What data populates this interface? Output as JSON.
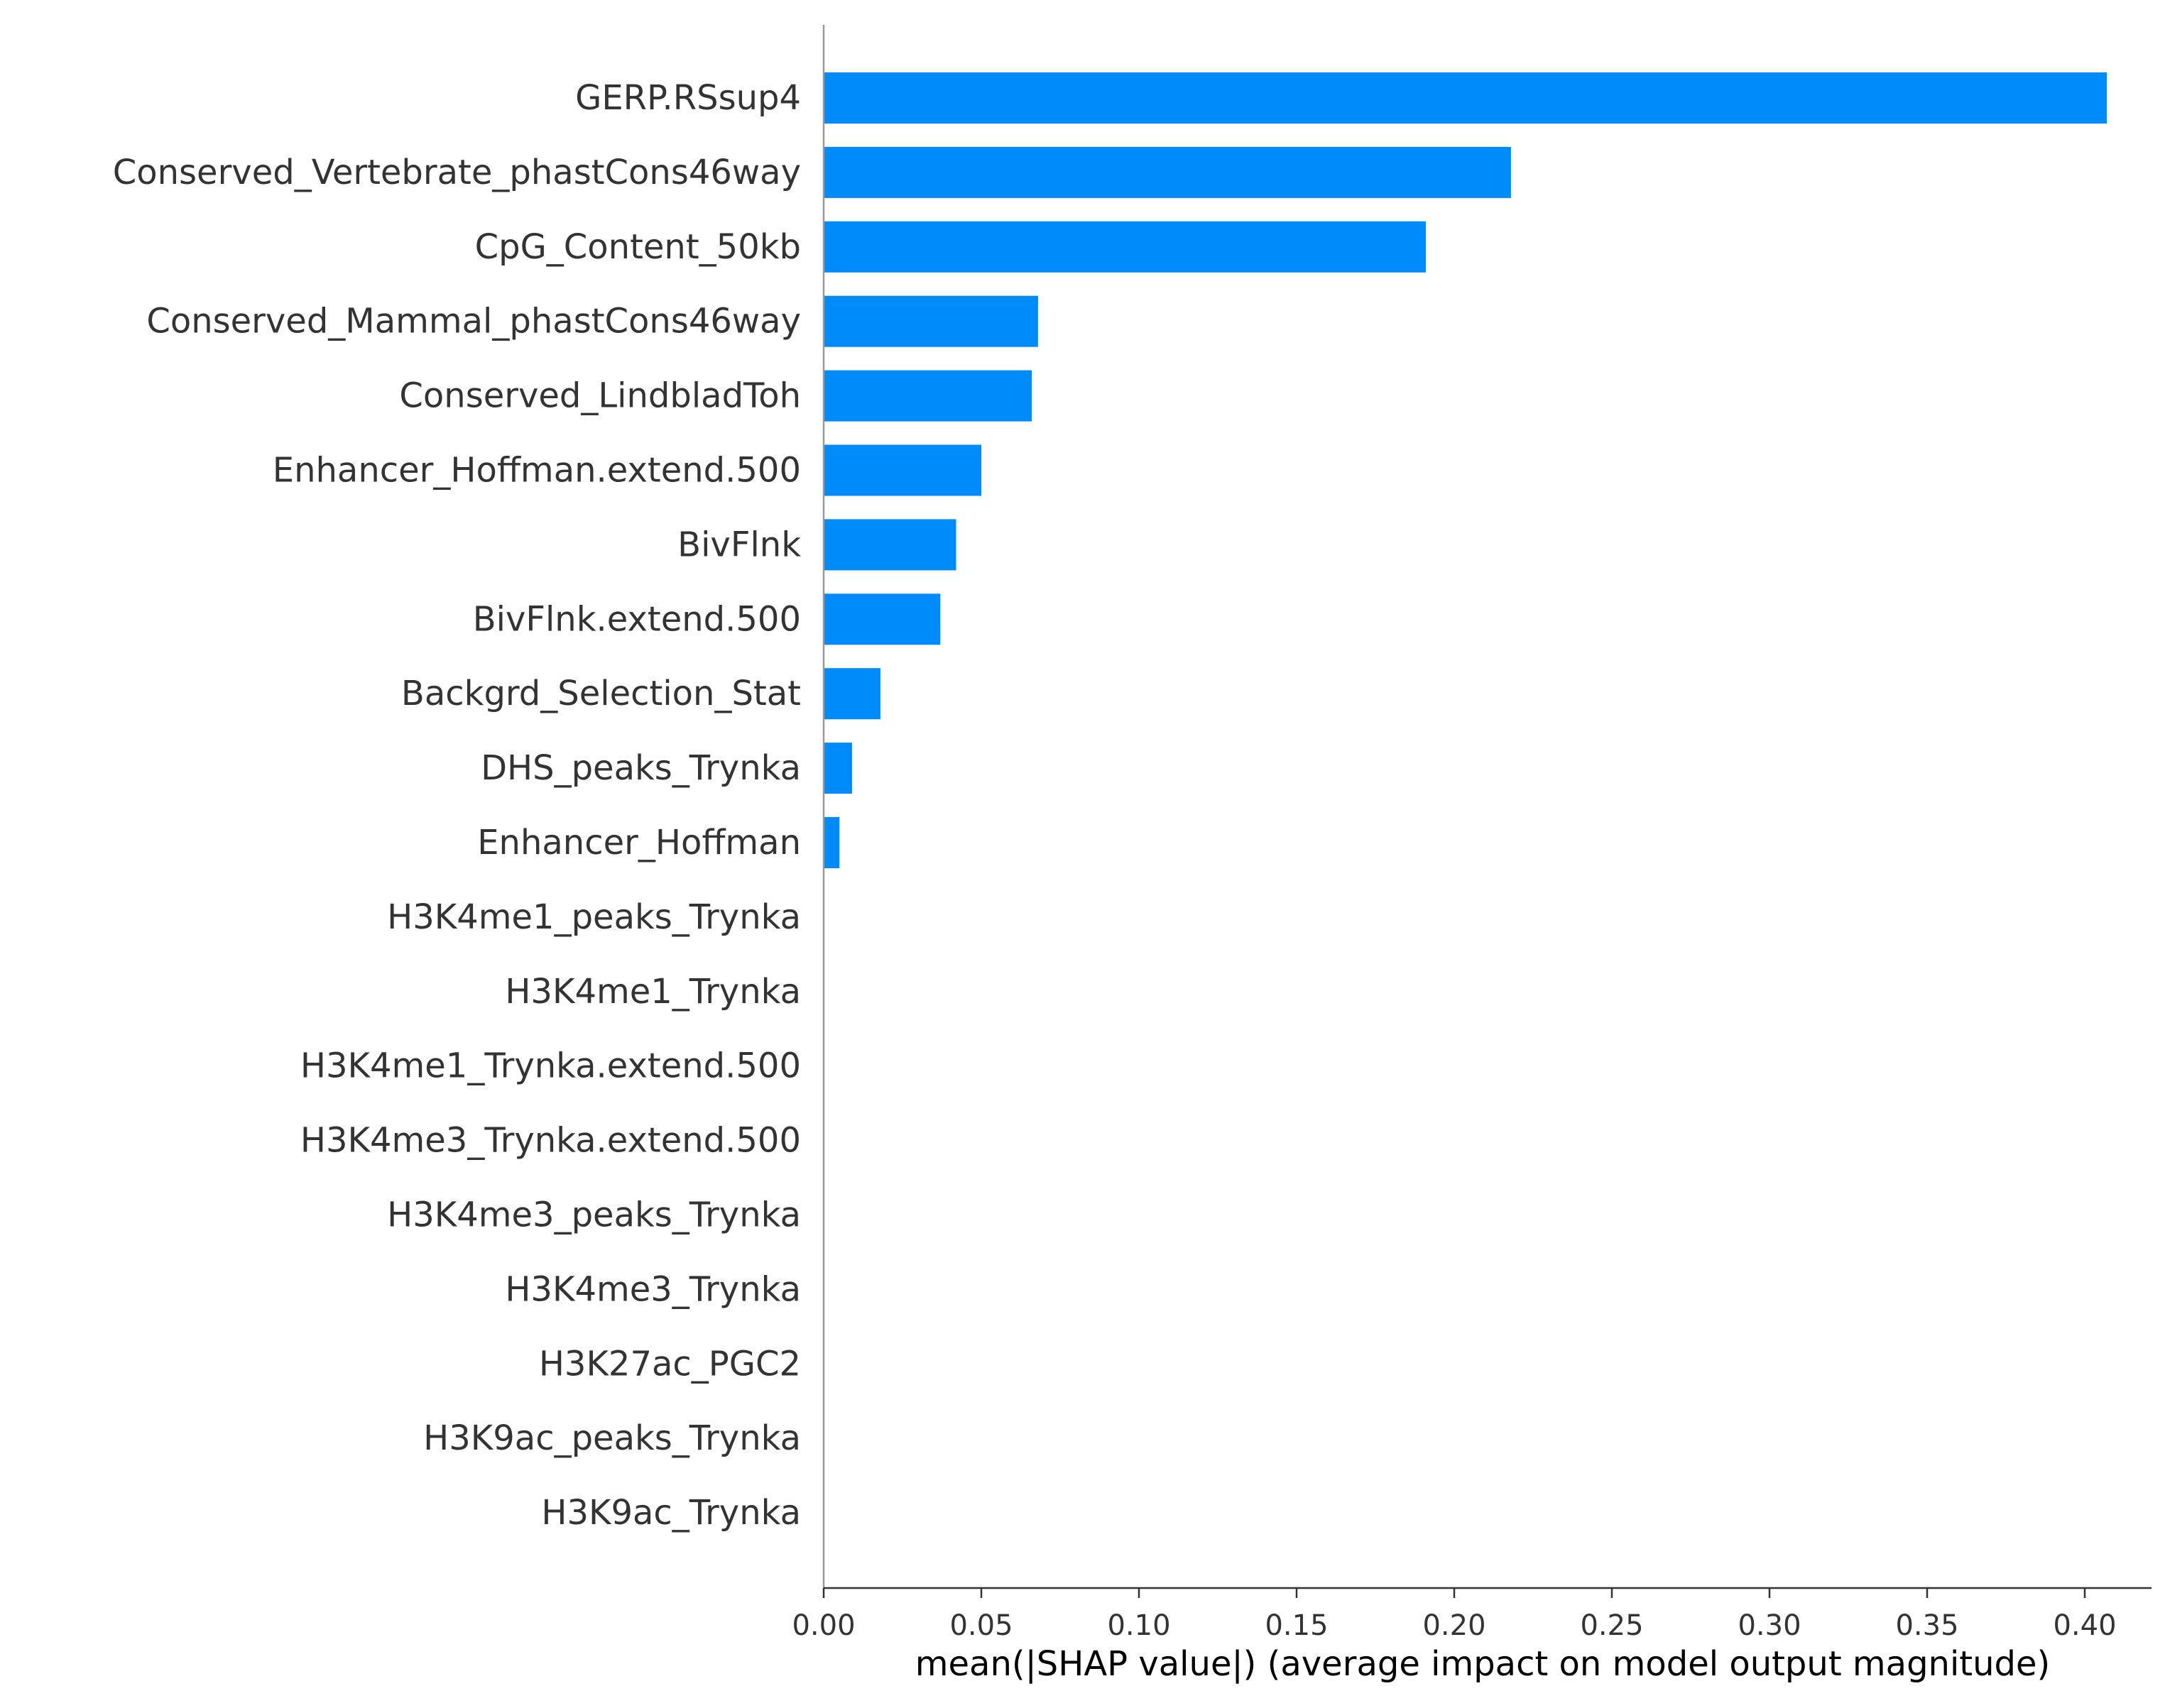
{
  "chart_data": {
    "type": "bar",
    "orientation": "horizontal",
    "title": "",
    "xlabel": "mean(|SHAP value|) (average impact on model output magnitude)",
    "ylabel": "",
    "xlim": [
      0,
      0.4284
    ],
    "xticks": [
      0.0,
      0.05,
      0.1,
      0.15,
      0.2,
      0.25,
      0.3,
      0.35,
      0.4
    ],
    "xtick_labels": [
      "0.00",
      "0.05",
      "0.10",
      "0.15",
      "0.20",
      "0.25",
      "0.30",
      "0.35",
      "0.40"
    ],
    "grid": false,
    "bar_color": "#008bfb",
    "text_color": "#333333",
    "categories": [
      "GERP.RSsup4",
      "Conserved_Vertebrate_phastCons46way",
      "CpG_Content_50kb",
      "Conserved_Mammal_phastCons46way",
      "Conserved_LindbladToh",
      "Enhancer_Hoffman.extend.500",
      "BivFlnk",
      "BivFlnk.extend.500",
      "Backgrd_Selection_Stat",
      "DHS_peaks_Trynka",
      "Enhancer_Hoffman",
      "H3K4me1_peaks_Trynka",
      "H3K4me1_Trynka",
      "H3K4me1_Trynka.extend.500",
      "H3K4me3_Trynka.extend.500",
      "H3K4me3_peaks_Trynka",
      "H3K4me3_Trynka",
      "H3K27ac_PGC2",
      "H3K9ac_peaks_Trynka",
      "H3K9ac_Trynka"
    ],
    "values": [
      0.407,
      0.218,
      0.191,
      0.068,
      0.066,
      0.05,
      0.042,
      0.037,
      0.018,
      0.009,
      0.005,
      0,
      0,
      0,
      0,
      0,
      0,
      0,
      0,
      0
    ]
  }
}
